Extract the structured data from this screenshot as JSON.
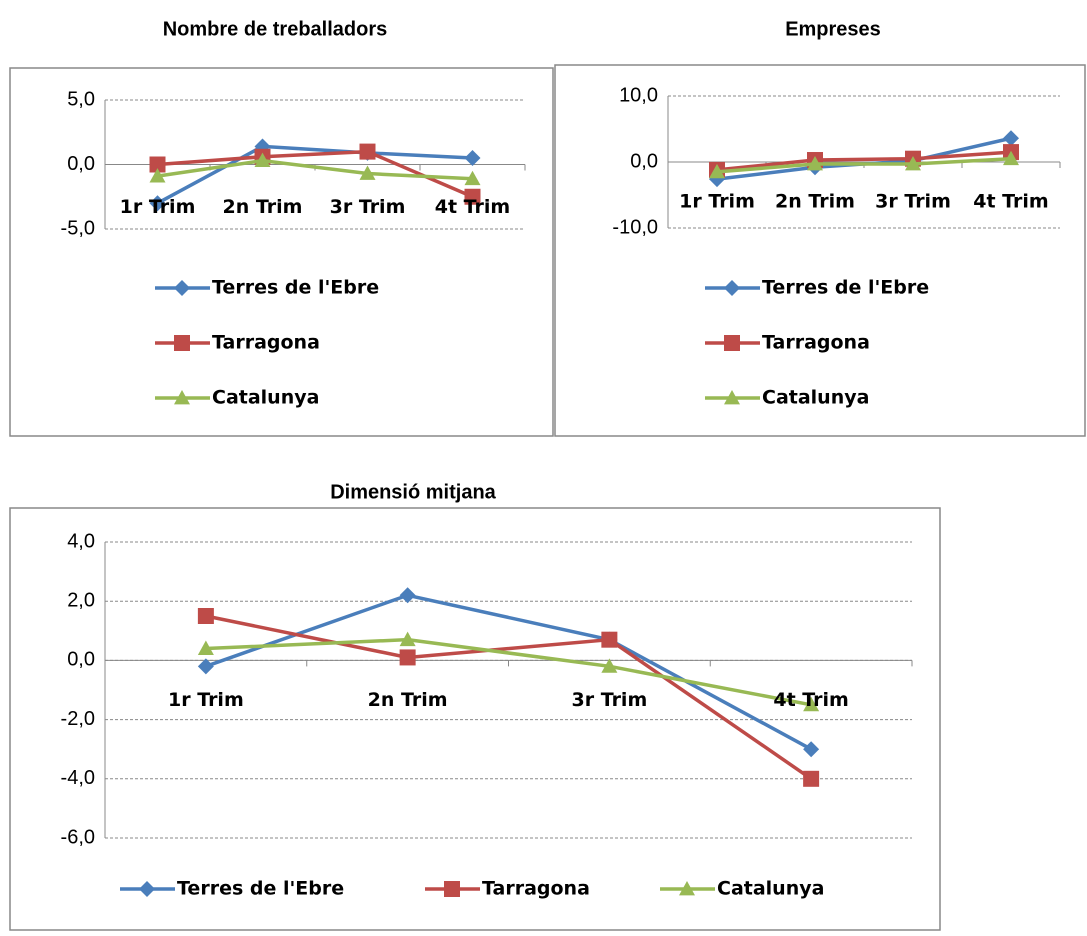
{
  "chart_data": [
    {
      "type": "line",
      "title": "Nombre de treballadors",
      "categories": [
        "1r Trim",
        "2n Trim",
        "3r Trim",
        "4t Trim"
      ],
      "ylim": [
        -5,
        5
      ],
      "yticks": [
        {
          "value": -5,
          "label": "-5,0"
        },
        {
          "value": 0,
          "label": "0,0"
        },
        {
          "value": 5,
          "label": "5,0"
        }
      ],
      "grid": true,
      "legend": "bottom",
      "series": [
        {
          "name": "Terres de l'Ebre",
          "color": "#4a7ebb",
          "marker": "diamond",
          "values": [
            -3.0,
            1.4,
            0.9,
            0.5
          ]
        },
        {
          "name": "Tarragona",
          "color": "#be4b48",
          "marker": "square",
          "values": [
            0.0,
            0.6,
            1.0,
            -2.5
          ]
        },
        {
          "name": "Catalunya",
          "color": "#98b954",
          "marker": "triangle",
          "values": [
            -0.9,
            0.3,
            -0.7,
            -1.1
          ]
        }
      ]
    },
    {
      "type": "line",
      "title": "Empreses",
      "categories": [
        "1r Trim",
        "2n Trim",
        "3r Trim",
        "4t Trim"
      ],
      "ylim": [
        -10,
        10
      ],
      "yticks": [
        {
          "value": -10,
          "label": "-10,0"
        },
        {
          "value": 0,
          "label": "0,0"
        },
        {
          "value": 10,
          "label": "10,0"
        }
      ],
      "grid": true,
      "legend": "bottom",
      "series": [
        {
          "name": "Terres de l'Ebre",
          "color": "#4a7ebb",
          "marker": "diamond",
          "values": [
            -2.6,
            -0.8,
            0.2,
            3.6
          ]
        },
        {
          "name": "Tarragona",
          "color": "#be4b48",
          "marker": "square",
          "values": [
            -1.2,
            0.3,
            0.5,
            1.5
          ]
        },
        {
          "name": "Catalunya",
          "color": "#98b954",
          "marker": "triangle",
          "values": [
            -1.5,
            -0.3,
            -0.3,
            0.5
          ]
        }
      ]
    },
    {
      "type": "line",
      "title": "Dimensió mitjana",
      "categories": [
        "1r Trim",
        "2n Trim",
        "3r Trim",
        "4t Trim"
      ],
      "ylim": [
        -6,
        4
      ],
      "yticks": [
        {
          "value": -6,
          "label": "-6,0"
        },
        {
          "value": -4,
          "label": "-4,0"
        },
        {
          "value": -2,
          "label": "-2,0"
        },
        {
          "value": 0,
          "label": "0,0"
        },
        {
          "value": 2,
          "label": "2,0"
        },
        {
          "value": 4,
          "label": "4,0"
        }
      ],
      "grid": true,
      "legend": "bottom",
      "series": [
        {
          "name": "Terres de l'Ebre",
          "color": "#4a7ebb",
          "marker": "diamond",
          "values": [
            -0.2,
            2.2,
            0.7,
            -3.0
          ]
        },
        {
          "name": "Tarragona",
          "color": "#be4b48",
          "marker": "square",
          "values": [
            1.5,
            0.1,
            0.7,
            -4.0
          ]
        },
        {
          "name": "Catalunya",
          "color": "#98b954",
          "marker": "triangle",
          "values": [
            0.4,
            0.7,
            -0.2,
            -1.5
          ]
        }
      ]
    }
  ]
}
